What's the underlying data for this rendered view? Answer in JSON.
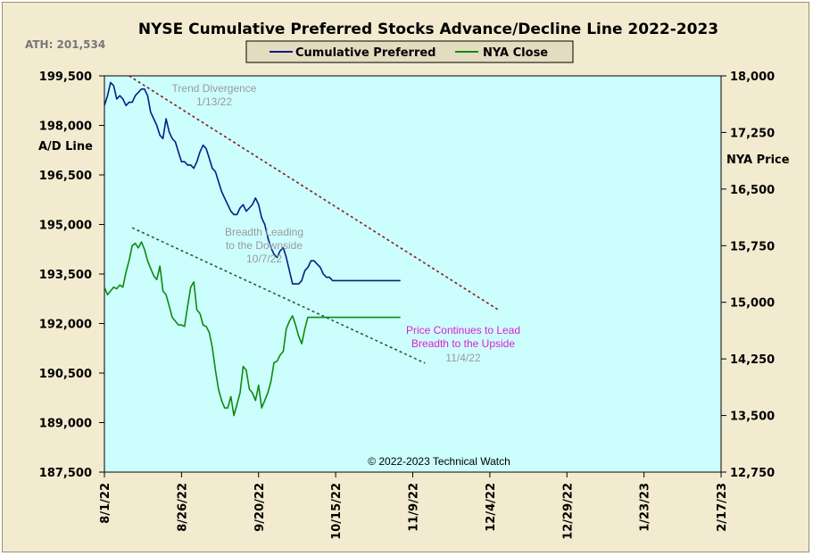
{
  "chart_data": {
    "type": "line",
    "title": "NYSE Cumulative  Preferred Stocks Advance/Decline  Line 2022-2023",
    "ath_label": "ATH: 201,534",
    "ylabel_left": "A/D Line",
    "ylabel_right": "NYA Price",
    "copyright": "© 2022-2023  Technical  Watch",
    "x_ticks": [
      "8/1/22",
      "8/26/22",
      "9/20/22",
      "10/15/22",
      "11/9/22",
      "12/4/22",
      "12/29/22",
      "1/23/23",
      "2/17/23"
    ],
    "x_range_days": [
      0,
      200
    ],
    "x_tick_spacing_days": 25,
    "left_axis": {
      "ylim": [
        187500,
        199500
      ],
      "ticks": [
        "187,500",
        "189,000",
        "190,500",
        "192,000",
        "193,500",
        "195,000",
        "196,500",
        "198,000",
        "199,500"
      ]
    },
    "right_axis": {
      "ylim": [
        12750,
        18000
      ],
      "ticks": [
        "12,750",
        "13,500",
        "14,250",
        "15,000",
        "15,750",
        "16,500",
        "17,250",
        "18,000"
      ]
    },
    "colors": {
      "plot_bg": "#ccfefe",
      "cumulative": "#0a1c84",
      "nya": "#0e8a0e",
      "trend_upper": "#8c1a1a",
      "trend_lower": "#2e5a2e"
    },
    "series": [
      {
        "name": "Cumulative Preferred",
        "axis": "left",
        "x": [
          0,
          1,
          2,
          3,
          4,
          5,
          6,
          7,
          8,
          9,
          10,
          11,
          12,
          13,
          14,
          15,
          16,
          17,
          18,
          19,
          20,
          21,
          22,
          23,
          24,
          25,
          26,
          27,
          28,
          29,
          30,
          31,
          32,
          33,
          34,
          35,
          36,
          37,
          38,
          39,
          40,
          41,
          42,
          43,
          44,
          45,
          46,
          47,
          48,
          49,
          50,
          51,
          52,
          53,
          54,
          55,
          56,
          57,
          58,
          59,
          60,
          61,
          62,
          63,
          64,
          65,
          66,
          67,
          68,
          69,
          70,
          71,
          72,
          73,
          74,
          75,
          76,
          77,
          78,
          79,
          80,
          81,
          82,
          83,
          84,
          85,
          86,
          87,
          88,
          89,
          90,
          91,
          92,
          93,
          94,
          95,
          96
        ],
        "y": [
          198600,
          198900,
          199300,
          199200,
          198800,
          198900,
          198800,
          198600,
          198700,
          198700,
          198900,
          199000,
          199100,
          199100,
          198900,
          198400,
          198200,
          198000,
          197700,
          197600,
          198200,
          197800,
          197600,
          197500,
          197200,
          196900,
          196900,
          196800,
          196800,
          196700,
          196900,
          197200,
          197400,
          197300,
          197000,
          196700,
          196600,
          196300,
          196000,
          195800,
          195600,
          195400,
          195300,
          195300,
          195500,
          195600,
          195400,
          195500,
          195600,
          195800,
          195600,
          195200,
          195000,
          194600,
          194300,
          194100,
          194000,
          194200,
          194300,
          194000,
          193600,
          193200,
          193200,
          193200,
          193300,
          193600,
          193700,
          193900,
          193900,
          193800,
          193700,
          193500,
          193400,
          193400,
          193300,
          193300,
          193300,
          193300,
          193300,
          193300,
          193300,
          193300,
          193300,
          193300,
          193300,
          193300,
          193300,
          193300,
          193300,
          193300,
          193300,
          193300,
          193300,
          193300,
          193300,
          193300,
          193300
        ]
      },
      {
        "name": "NYA Close",
        "axis": "right",
        "x": [
          0,
          1,
          2,
          3,
          4,
          5,
          6,
          7,
          8,
          9,
          10,
          11,
          12,
          13,
          14,
          15,
          16,
          17,
          18,
          19,
          20,
          21,
          22,
          23,
          24,
          25,
          26,
          27,
          28,
          29,
          30,
          31,
          32,
          33,
          34,
          35,
          36,
          37,
          38,
          39,
          40,
          41,
          42,
          43,
          44,
          45,
          46,
          47,
          48,
          49,
          50,
          51,
          52,
          53,
          54,
          55,
          56,
          57,
          58,
          59,
          60,
          61,
          62,
          63,
          64,
          65,
          66,
          67,
          68,
          69,
          70,
          71,
          72,
          73,
          74,
          75,
          76,
          77,
          78,
          79,
          80,
          81,
          82,
          83,
          84,
          85,
          86,
          87,
          88,
          89,
          90,
          91,
          92,
          93,
          94,
          95,
          96
        ],
        "y": [
          15200,
          15100,
          15150,
          15200,
          15180,
          15230,
          15200,
          15400,
          15550,
          15750,
          15780,
          15720,
          15800,
          15700,
          15550,
          15450,
          15350,
          15300,
          15480,
          15150,
          15100,
          14950,
          14800,
          14750,
          14700,
          14700,
          14680,
          14950,
          15200,
          15270,
          14900,
          14850,
          14700,
          14680,
          14600,
          14400,
          14100,
          13850,
          13700,
          13600,
          13600,
          13750,
          13500,
          13650,
          13800,
          14150,
          14100,
          13850,
          13800,
          13700,
          13900,
          13600,
          13700,
          13800,
          13950,
          14200,
          14220,
          14300,
          14350,
          14650,
          14750,
          14820,
          14700,
          14550,
          14450,
          14650,
          14800,
          14800,
          14800,
          14800,
          14800,
          14800,
          14800,
          14800,
          14800,
          14800,
          14800,
          14800,
          14800,
          14800,
          14800,
          14800,
          14800,
          14800,
          14800,
          14800,
          14800,
          14800,
          14800,
          14800,
          14800,
          14800,
          14800,
          14800,
          14800,
          14800,
          14800
        ]
      }
    ],
    "trendlines": [
      {
        "from": {
          "x": 8,
          "y_left": 199500
        },
        "to": {
          "x": 128,
          "y_left": 192400
        }
      },
      {
        "from": {
          "x": 9,
          "y_left": 194900
        },
        "to": {
          "x": 104,
          "y_left": 190800
        }
      }
    ],
    "annotations": [
      {
        "lines": [
          "Trend  Divergence",
          "1/13/22"
        ],
        "style": "grey"
      },
      {
        "lines": [
          "Breadth  Leading",
          "to the Downside",
          "10/7/22"
        ],
        "style": "grey"
      },
      {
        "lines": [
          "Price Continues  to Lead",
          "Breadth  to the Upside"
        ],
        "style": "magenta"
      },
      {
        "lines": [
          "11/4/22"
        ],
        "style": "grey"
      }
    ]
  }
}
